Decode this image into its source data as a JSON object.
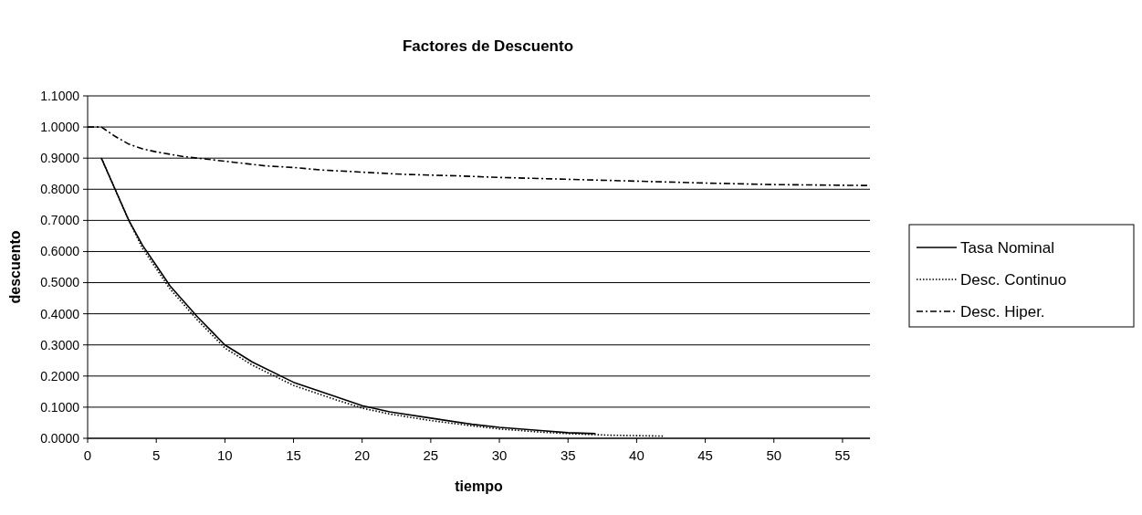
{
  "chart_data": {
    "type": "line",
    "title": "Factores de Descuento",
    "xlabel": "tiempo",
    "ylabel": "descuento",
    "xlim": [
      0,
      57
    ],
    "xticks": [
      0,
      5,
      10,
      15,
      20,
      25,
      30,
      35,
      40,
      45,
      50,
      55
    ],
    "ylim": [
      0,
      1.1
    ],
    "yticks": [
      {
        "value": 0,
        "label": "0.0000"
      },
      {
        "value": 0.1,
        "label": "0.1000"
      },
      {
        "value": 0.2,
        "label": "0.2000"
      },
      {
        "value": 0.3,
        "label": "0.3000"
      },
      {
        "value": 0.4,
        "label": "0.4000"
      },
      {
        "value": 0.5,
        "label": "0.5000"
      },
      {
        "value": 0.6,
        "label": "0.6000"
      },
      {
        "value": 0.7,
        "label": "0.7000"
      },
      {
        "value": 0.8,
        "label": "0.8000"
      },
      {
        "value": 0.9,
        "label": "0.9000"
      },
      {
        "value": 1,
        "label": "1.0000"
      },
      {
        "value": 1.1,
        "label": "1.1000"
      }
    ],
    "grid": "y",
    "legend": "right",
    "series": [
      {
        "name": "Tasa Nominal",
        "color": "#000000",
        "line_style": "solid",
        "x": [
          1,
          2,
          3,
          4,
          5,
          6,
          7,
          8,
          9,
          10,
          12,
          15,
          18,
          20,
          22,
          25,
          28,
          30,
          33,
          35,
          37
        ],
        "values": [
          0.9,
          0.8,
          0.7,
          0.62,
          0.555,
          0.49,
          0.44,
          0.39,
          0.345,
          0.3,
          0.245,
          0.18,
          0.135,
          0.105,
          0.085,
          0.065,
          0.045,
          0.035,
          0.025,
          0.018,
          0.015
        ]
      },
      {
        "name": "Desc. Continuo",
        "color": "#000000",
        "line_style": "dotted",
        "x": [
          1,
          2,
          3,
          4,
          5,
          6,
          7,
          8,
          9,
          10,
          12,
          15,
          18,
          20,
          22,
          25,
          28,
          30,
          33,
          35,
          38,
          42
        ],
        "values": [
          0.9,
          0.8,
          0.7,
          0.61,
          0.545,
          0.48,
          0.43,
          0.38,
          0.335,
          0.29,
          0.235,
          0.17,
          0.125,
          0.097,
          0.078,
          0.057,
          0.04,
          0.03,
          0.02,
          0.015,
          0.01,
          0.007
        ]
      },
      {
        "name": "Desc. Hiper.",
        "color": "#000000",
        "line_style": "dashed",
        "x": [
          0,
          1,
          2,
          3,
          4,
          5,
          7,
          10,
          13,
          15,
          17,
          20,
          23,
          27,
          30,
          35,
          40,
          45,
          50,
          57
        ],
        "values": [
          1,
          1,
          0.97,
          0.945,
          0.93,
          0.92,
          0.905,
          0.89,
          0.875,
          0.87,
          0.862,
          0.855,
          0.848,
          0.843,
          0.838,
          0.832,
          0.826,
          0.82,
          0.815,
          0.812
        ]
      }
    ]
  }
}
